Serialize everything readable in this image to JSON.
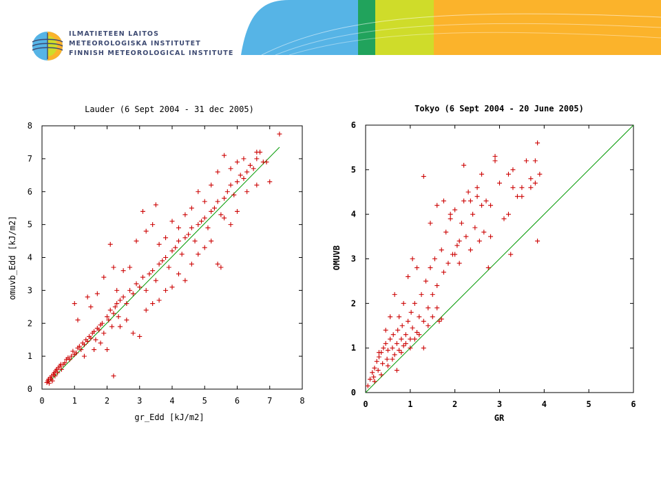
{
  "header": {
    "logo_lines": [
      "ILMATIETEEN LAITOS",
      "METEOROLOGISKA INSTITUTET",
      "FINNISH METEOROLOGICAL INSTITUTE"
    ],
    "colors": {
      "sky": "#56b4e6",
      "green": "#21a35c",
      "lime": "#cfdc2a",
      "orange": "#fbb32b",
      "navy": "#3d4a72"
    }
  },
  "chart_data": [
    {
      "type": "scatter",
      "title": "Lauder (6 Sept 2004 - 31 dec 2005)",
      "xlabel": "gr_Edd [kJ/m2]",
      "ylabel": "omuvb_Edd [kJ/m2]",
      "xlim": [
        0,
        8
      ],
      "ylim": [
        0,
        8
      ],
      "xticks": [
        "0",
        "1",
        "2",
        "3",
        "4",
        "5",
        "6",
        "7",
        "8"
      ],
      "yticks": [
        "0",
        "1",
        "2",
        "3",
        "4",
        "5",
        "6",
        "7",
        "8"
      ],
      "reference_line": {
        "from": [
          0.2,
          0.2
        ],
        "to": [
          7.3,
          7.35
        ],
        "color": "#009900"
      },
      "marker_color": "#cc0000",
      "points": [
        [
          0.15,
          0.2
        ],
        [
          0.18,
          0.25
        ],
        [
          0.2,
          0.3
        ],
        [
          0.22,
          0.18
        ],
        [
          0.25,
          0.35
        ],
        [
          0.28,
          0.3
        ],
        [
          0.3,
          0.4
        ],
        [
          0.32,
          0.25
        ],
        [
          0.35,
          0.45
        ],
        [
          0.38,
          0.5
        ],
        [
          0.4,
          0.4
        ],
        [
          0.42,
          0.55
        ],
        [
          0.45,
          0.6
        ],
        [
          0.48,
          0.5
        ],
        [
          0.5,
          0.65
        ],
        [
          0.55,
          0.7
        ],
        [
          0.58,
          0.75
        ],
        [
          0.6,
          0.6
        ],
        [
          0.65,
          0.75
        ],
        [
          0.7,
          0.8
        ],
        [
          0.75,
          0.9
        ],
        [
          0.8,
          0.95
        ],
        [
          0.85,
          0.9
        ],
        [
          0.9,
          1.0
        ],
        [
          0.95,
          1.15
        ],
        [
          1.0,
          1.05
        ],
        [
          1.05,
          1.1
        ],
        [
          1.1,
          1.25
        ],
        [
          1.15,
          1.3
        ],
        [
          1.2,
          1.2
        ],
        [
          1.25,
          1.4
        ],
        [
          1.3,
          1.35
        ],
        [
          1.35,
          1.5
        ],
        [
          1.4,
          1.45
        ],
        [
          1.45,
          1.6
        ],
        [
          1.5,
          1.55
        ],
        [
          1.55,
          1.7
        ],
        [
          1.6,
          1.75
        ],
        [
          1.65,
          1.5
        ],
        [
          1.7,
          1.85
        ],
        [
          1.75,
          1.8
        ],
        [
          1.8,
          1.95
        ],
        [
          1.85,
          2.0
        ],
        [
          1.9,
          1.7
        ],
        [
          2.0,
          2.2
        ],
        [
          2.05,
          2.1
        ],
        [
          2.1,
          2.4
        ],
        [
          2.15,
          1.9
        ],
        [
          2.2,
          2.3
        ],
        [
          2.25,
          2.5
        ],
        [
          2.3,
          2.6
        ],
        [
          2.35,
          2.2
        ],
        [
          2.4,
          2.7
        ],
        [
          2.5,
          2.8
        ],
        [
          2.6,
          2.6
        ],
        [
          2.7,
          3.0
        ],
        [
          2.8,
          2.9
        ],
        [
          2.9,
          3.2
        ],
        [
          3.0,
          3.1
        ],
        [
          3.1,
          3.4
        ],
        [
          3.2,
          3.0
        ],
        [
          3.3,
          3.5
        ],
        [
          3.4,
          3.6
        ],
        [
          3.5,
          3.3
        ],
        [
          3.6,
          3.8
        ],
        [
          3.7,
          3.9
        ],
        [
          3.8,
          4.0
        ],
        [
          3.9,
          3.7
        ],
        [
          4.0,
          4.2
        ],
        [
          4.1,
          4.3
        ],
        [
          4.2,
          4.5
        ],
        [
          4.3,
          4.1
        ],
        [
          4.4,
          4.6
        ],
        [
          4.5,
          4.7
        ],
        [
          4.6,
          4.9
        ],
        [
          4.7,
          4.5
        ],
        [
          4.8,
          5.0
        ],
        [
          4.9,
          5.1
        ],
        [
          5.0,
          5.2
        ],
        [
          5.1,
          4.9
        ],
        [
          5.2,
          5.4
        ],
        [
          5.3,
          5.5
        ],
        [
          5.4,
          5.7
        ],
        [
          5.5,
          5.3
        ],
        [
          5.6,
          5.8
        ],
        [
          5.7,
          6.0
        ],
        [
          5.8,
          6.2
        ],
        [
          5.9,
          5.9
        ],
        [
          6.0,
          6.3
        ],
        [
          6.1,
          6.5
        ],
        [
          6.2,
          6.4
        ],
        [
          6.3,
          6.6
        ],
        [
          6.4,
          6.8
        ],
        [
          6.5,
          6.7
        ],
        [
          6.6,
          7.0
        ],
        [
          6.7,
          7.2
        ],
        [
          6.8,
          6.9
        ],
        [
          7.0,
          6.3
        ],
        [
          7.3,
          7.75
        ],
        [
          1.0,
          2.6
        ],
        [
          1.1,
          2.1
        ],
        [
          1.4,
          2.8
        ],
        [
          1.5,
          2.5
        ],
        [
          1.7,
          2.9
        ],
        [
          1.9,
          3.4
        ],
        [
          2.1,
          4.4
        ],
        [
          2.2,
          3.7
        ],
        [
          2.3,
          3.0
        ],
        [
          2.5,
          3.6
        ],
        [
          2.7,
          3.7
        ],
        [
          2.9,
          4.5
        ],
        [
          3.1,
          5.4
        ],
        [
          3.2,
          4.8
        ],
        [
          3.4,
          5.0
        ],
        [
          3.5,
          5.6
        ],
        [
          3.6,
          4.4
        ],
        [
          3.8,
          4.6
        ],
        [
          4.0,
          5.1
        ],
        [
          4.2,
          4.9
        ],
        [
          4.4,
          5.3
        ],
        [
          4.6,
          5.5
        ],
        [
          4.8,
          6.0
        ],
        [
          5.0,
          5.7
        ],
        [
          5.2,
          6.2
        ],
        [
          5.4,
          6.6
        ],
        [
          5.6,
          7.1
        ],
        [
          5.8,
          6.7
        ],
        [
          6.0,
          6.9
        ],
        [
          6.2,
          7.0
        ],
        [
          6.6,
          7.2
        ],
        [
          1.3,
          1.0
        ],
        [
          1.6,
          1.2
        ],
        [
          1.8,
          1.4
        ],
        [
          2.0,
          1.2
        ],
        [
          2.2,
          0.4
        ],
        [
          2.4,
          1.9
        ],
        [
          2.6,
          2.1
        ],
        [
          2.8,
          1.7
        ],
        [
          3.0,
          1.6
        ],
        [
          3.2,
          2.4
        ],
        [
          3.4,
          2.6
        ],
        [
          3.6,
          2.7
        ],
        [
          3.8,
          3.0
        ],
        [
          4.0,
          3.1
        ],
        [
          4.2,
          3.5
        ],
        [
          4.4,
          3.3
        ],
        [
          4.6,
          3.8
        ],
        [
          4.8,
          4.1
        ],
        [
          5.0,
          4.3
        ],
        [
          5.2,
          4.5
        ],
        [
          5.4,
          3.8
        ],
        [
          5.5,
          3.7
        ],
        [
          5.6,
          5.2
        ],
        [
          5.8,
          5.0
        ],
        [
          6.0,
          5.4
        ],
        [
          6.3,
          6.0
        ],
        [
          6.6,
          6.2
        ],
        [
          6.9,
          6.9
        ]
      ]
    },
    {
      "type": "scatter",
      "title": "Tokyo (6 Sept 2004 - 20 June 2005)",
      "xlabel": "GR",
      "ylabel": "OMUVB",
      "xlim": [
        0,
        6
      ],
      "ylim": [
        0,
        6
      ],
      "xticks": [
        "0",
        "1",
        "2",
        "3",
        "4",
        "5",
        "6"
      ],
      "yticks": [
        "0",
        "1",
        "2",
        "3",
        "4",
        "5",
        "6"
      ],
      "reference_line": {
        "from": [
          0,
          0
        ],
        "to": [
          6,
          6
        ],
        "color": "#009900"
      },
      "marker_color": "#cc0000",
      "points": [
        [
          0.05,
          0.15
        ],
        [
          0.1,
          0.3
        ],
        [
          0.15,
          0.45
        ],
        [
          0.18,
          0.35
        ],
        [
          0.2,
          0.55
        ],
        [
          0.25,
          0.7
        ],
        [
          0.28,
          0.5
        ],
        [
          0.3,
          0.8
        ],
        [
          0.35,
          0.9
        ],
        [
          0.38,
          0.65
        ],
        [
          0.4,
          1.0
        ],
        [
          0.45,
          1.1
        ],
        [
          0.48,
          0.75
        ],
        [
          0.5,
          0.95
        ],
        [
          0.55,
          1.2
        ],
        [
          0.6,
          1.0
        ],
        [
          0.62,
          1.3
        ],
        [
          0.65,
          0.85
        ],
        [
          0.7,
          1.1
        ],
        [
          0.72,
          1.4
        ],
        [
          0.75,
          0.95
        ],
        [
          0.8,
          1.2
        ],
        [
          0.82,
          1.5
        ],
        [
          0.85,
          1.05
        ],
        [
          0.9,
          1.3
        ],
        [
          0.95,
          1.6
        ],
        [
          1.0,
          1.2
        ],
        [
          1.02,
          1.8
        ],
        [
          1.05,
          1.45
        ],
        [
          1.1,
          2.0
        ],
        [
          1.15,
          1.35
        ],
        [
          1.2,
          1.7
        ],
        [
          1.25,
          2.2
        ],
        [
          1.3,
          1.6
        ],
        [
          1.35,
          2.5
        ],
        [
          1.4,
          1.9
        ],
        [
          1.45,
          2.8
        ],
        [
          1.5,
          2.2
        ],
        [
          1.55,
          3.0
        ],
        [
          1.6,
          2.4
        ],
        [
          1.65,
          1.6
        ],
        [
          1.7,
          3.2
        ],
        [
          1.75,
          2.7
        ],
        [
          1.8,
          3.6
        ],
        [
          1.85,
          2.9
        ],
        [
          1.9,
          3.9
        ],
        [
          1.95,
          3.1
        ],
        [
          2.0,
          4.1
        ],
        [
          2.05,
          3.3
        ],
        [
          2.1,
          2.9
        ],
        [
          2.15,
          3.8
        ],
        [
          2.2,
          4.3
        ],
        [
          2.25,
          3.5
        ],
        [
          2.3,
          4.5
        ],
        [
          2.35,
          3.2
        ],
        [
          2.4,
          4.0
        ],
        [
          2.45,
          3.7
        ],
        [
          2.5,
          4.6
        ],
        [
          2.55,
          3.4
        ],
        [
          2.6,
          4.2
        ],
        [
          2.65,
          3.6
        ],
        [
          2.7,
          4.3
        ],
        [
          2.75,
          2.8
        ],
        [
          2.8,
          3.5
        ],
        [
          2.9,
          5.2
        ],
        [
          3.0,
          4.7
        ],
        [
          3.1,
          3.9
        ],
        [
          3.2,
          4.9
        ],
        [
          3.3,
          5.0
        ],
        [
          3.4,
          4.4
        ],
        [
          3.5,
          4.6
        ],
        [
          3.6,
          5.2
        ],
        [
          3.7,
          4.8
        ],
        [
          3.8,
          5.2
        ],
        [
          3.85,
          5.6
        ],
        [
          3.9,
          4.9
        ],
        [
          0.2,
          0.25
        ],
        [
          0.35,
          0.4
        ],
        [
          0.5,
          0.6
        ],
        [
          0.6,
          0.75
        ],
        [
          0.7,
          0.5
        ],
        [
          0.8,
          0.9
        ],
        [
          0.9,
          1.1
        ],
        [
          1.0,
          1.0
        ],
        [
          1.1,
          1.2
        ],
        [
          1.2,
          1.3
        ],
        [
          1.3,
          1.0
        ],
        [
          1.4,
          1.5
        ],
        [
          1.5,
          1.7
        ],
        [
          1.6,
          1.9
        ],
        [
          1.7,
          1.65
        ],
        [
          0.3,
          0.9
        ],
        [
          0.45,
          1.4
        ],
        [
          0.55,
          1.7
        ],
        [
          0.65,
          2.2
        ],
        [
          0.75,
          1.7
        ],
        [
          0.85,
          2.0
        ],
        [
          0.95,
          2.6
        ],
        [
          1.05,
          3.0
        ],
        [
          1.15,
          2.8
        ],
        [
          1.3,
          4.85
        ],
        [
          1.45,
          3.8
        ],
        [
          1.6,
          4.2
        ],
        [
          1.75,
          4.3
        ],
        [
          1.9,
          4.0
        ],
        [
          2.0,
          3.1
        ],
        [
          2.1,
          3.4
        ],
        [
          2.2,
          5.1
        ],
        [
          2.35,
          4.3
        ],
        [
          2.5,
          4.4
        ],
        [
          2.6,
          4.9
        ],
        [
          2.8,
          4.2
        ],
        [
          2.9,
          5.3
        ],
        [
          3.2,
          4.0
        ],
        [
          3.25,
          3.1
        ],
        [
          3.3,
          4.6
        ],
        [
          3.5,
          4.4
        ],
        [
          3.7,
          4.6
        ],
        [
          3.8,
          4.7
        ],
        [
          3.85,
          3.4
        ]
      ]
    }
  ]
}
